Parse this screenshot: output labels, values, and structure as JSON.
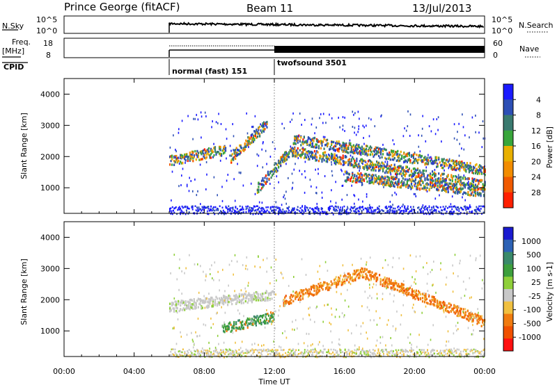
{
  "header": {
    "station": "Prince George (fitACF)",
    "beam": "Beam 11",
    "date": "13/Jul/2013"
  },
  "sky_panel": {
    "left_label": "N.Sky",
    "right_label": "N.Search",
    "left_ticks": [
      "10^5",
      "10^0"
    ],
    "right_ticks": [
      "10^5",
      "10^0"
    ]
  },
  "freq_panel": {
    "left_label": "Freq.",
    "left_unit": "[MHz]",
    "right_label": "Nave",
    "left_ticks": [
      "18",
      "8"
    ],
    "right_ticks": [
      "60",
      "0"
    ]
  },
  "cpid": {
    "label": "CPID",
    "segments": [
      {
        "start_h": 6,
        "name": "normal (fast) 151"
      },
      {
        "start_h": 12,
        "name": "twofsound 3501"
      }
    ]
  },
  "x_axis": {
    "ticks": [
      "00:00",
      "04:00",
      "08:00",
      "12:00",
      "16:00",
      "20:00",
      "00:00"
    ],
    "label": "Time UT",
    "range_h": [
      0,
      24
    ]
  },
  "power_panel": {
    "ylabel": "Slant Range [km]",
    "yticks": [
      "1000",
      "2000",
      "3000",
      "4000"
    ],
    "colorbar_label": "Power [dB]",
    "colorbar_ticks": [
      "4",
      "8",
      "12",
      "16",
      "20",
      "24",
      "28"
    ],
    "colors": [
      "#1a1aff",
      "#2d4fb5",
      "#3a7a6f",
      "#39a63b",
      "#e8b000",
      "#f28c00",
      "#f05a00",
      "#ff2000"
    ]
  },
  "velocity_panel": {
    "ylabel": "Slant Range [km]",
    "yticks": [
      "1000",
      "2000",
      "3000",
      "4000"
    ],
    "colorbar_label": "Velocity [m s-1]",
    "colorbar_ticks": [
      "1000",
      "500",
      "100",
      "25",
      "-25",
      "-100",
      "-500",
      "-1000"
    ],
    "colors": [
      "#1a1ad0",
      "#2d62b5",
      "#3a8a6a",
      "#3d9f3d",
      "#8fcf3a",
      "#c8c8c8",
      "#f0c040",
      "#f07b10",
      "#f05000",
      "#ff1010"
    ]
  },
  "chart_data": {
    "type": "heatmap",
    "x_range_h": [
      0,
      24
    ],
    "y_range_km": [
      180,
      4500
    ],
    "data_start_h": 6,
    "power_features": [
      {
        "from_h": 6.0,
        "to_h": 9.2,
        "range_from_km": 1900,
        "range_to_km": 2250
      },
      {
        "from_h": 9.5,
        "to_h": 11.6,
        "range_from_km": 2000,
        "range_to_km": 3100
      },
      {
        "from_h": 11.0,
        "to_h": 13.0,
        "range_from_km": 1000,
        "range_to_km": 2300
      },
      {
        "from_h": 13.0,
        "to_h": 24.0,
        "range_from_km": 2600,
        "range_to_km": 1600
      },
      {
        "from_h": 13.0,
        "to_h": 24.0,
        "range_from_km": 2200,
        "range_to_km": 1100
      },
      {
        "from_h": 16.0,
        "to_h": 24.0,
        "range_from_km": 1400,
        "range_to_km": 900
      }
    ],
    "velocity_features": [
      {
        "from_h": 6.0,
        "to_h": 12.0,
        "range_from_km": 1800,
        "range_to_km": 2200,
        "velocity_ms": 0
      },
      {
        "from_h": 12.5,
        "to_h": 17.0,
        "range_from_km": 2000,
        "range_to_km": 2900,
        "velocity_ms": -300
      },
      {
        "from_h": 17.0,
        "to_h": 24.0,
        "range_from_km": 2900,
        "range_to_km": 1300,
        "velocity_ms": -400
      },
      {
        "from_h": 9.0,
        "to_h": 12.0,
        "range_from_km": 1100,
        "range_to_km": 1500,
        "velocity_ms": 150
      }
    ]
  }
}
